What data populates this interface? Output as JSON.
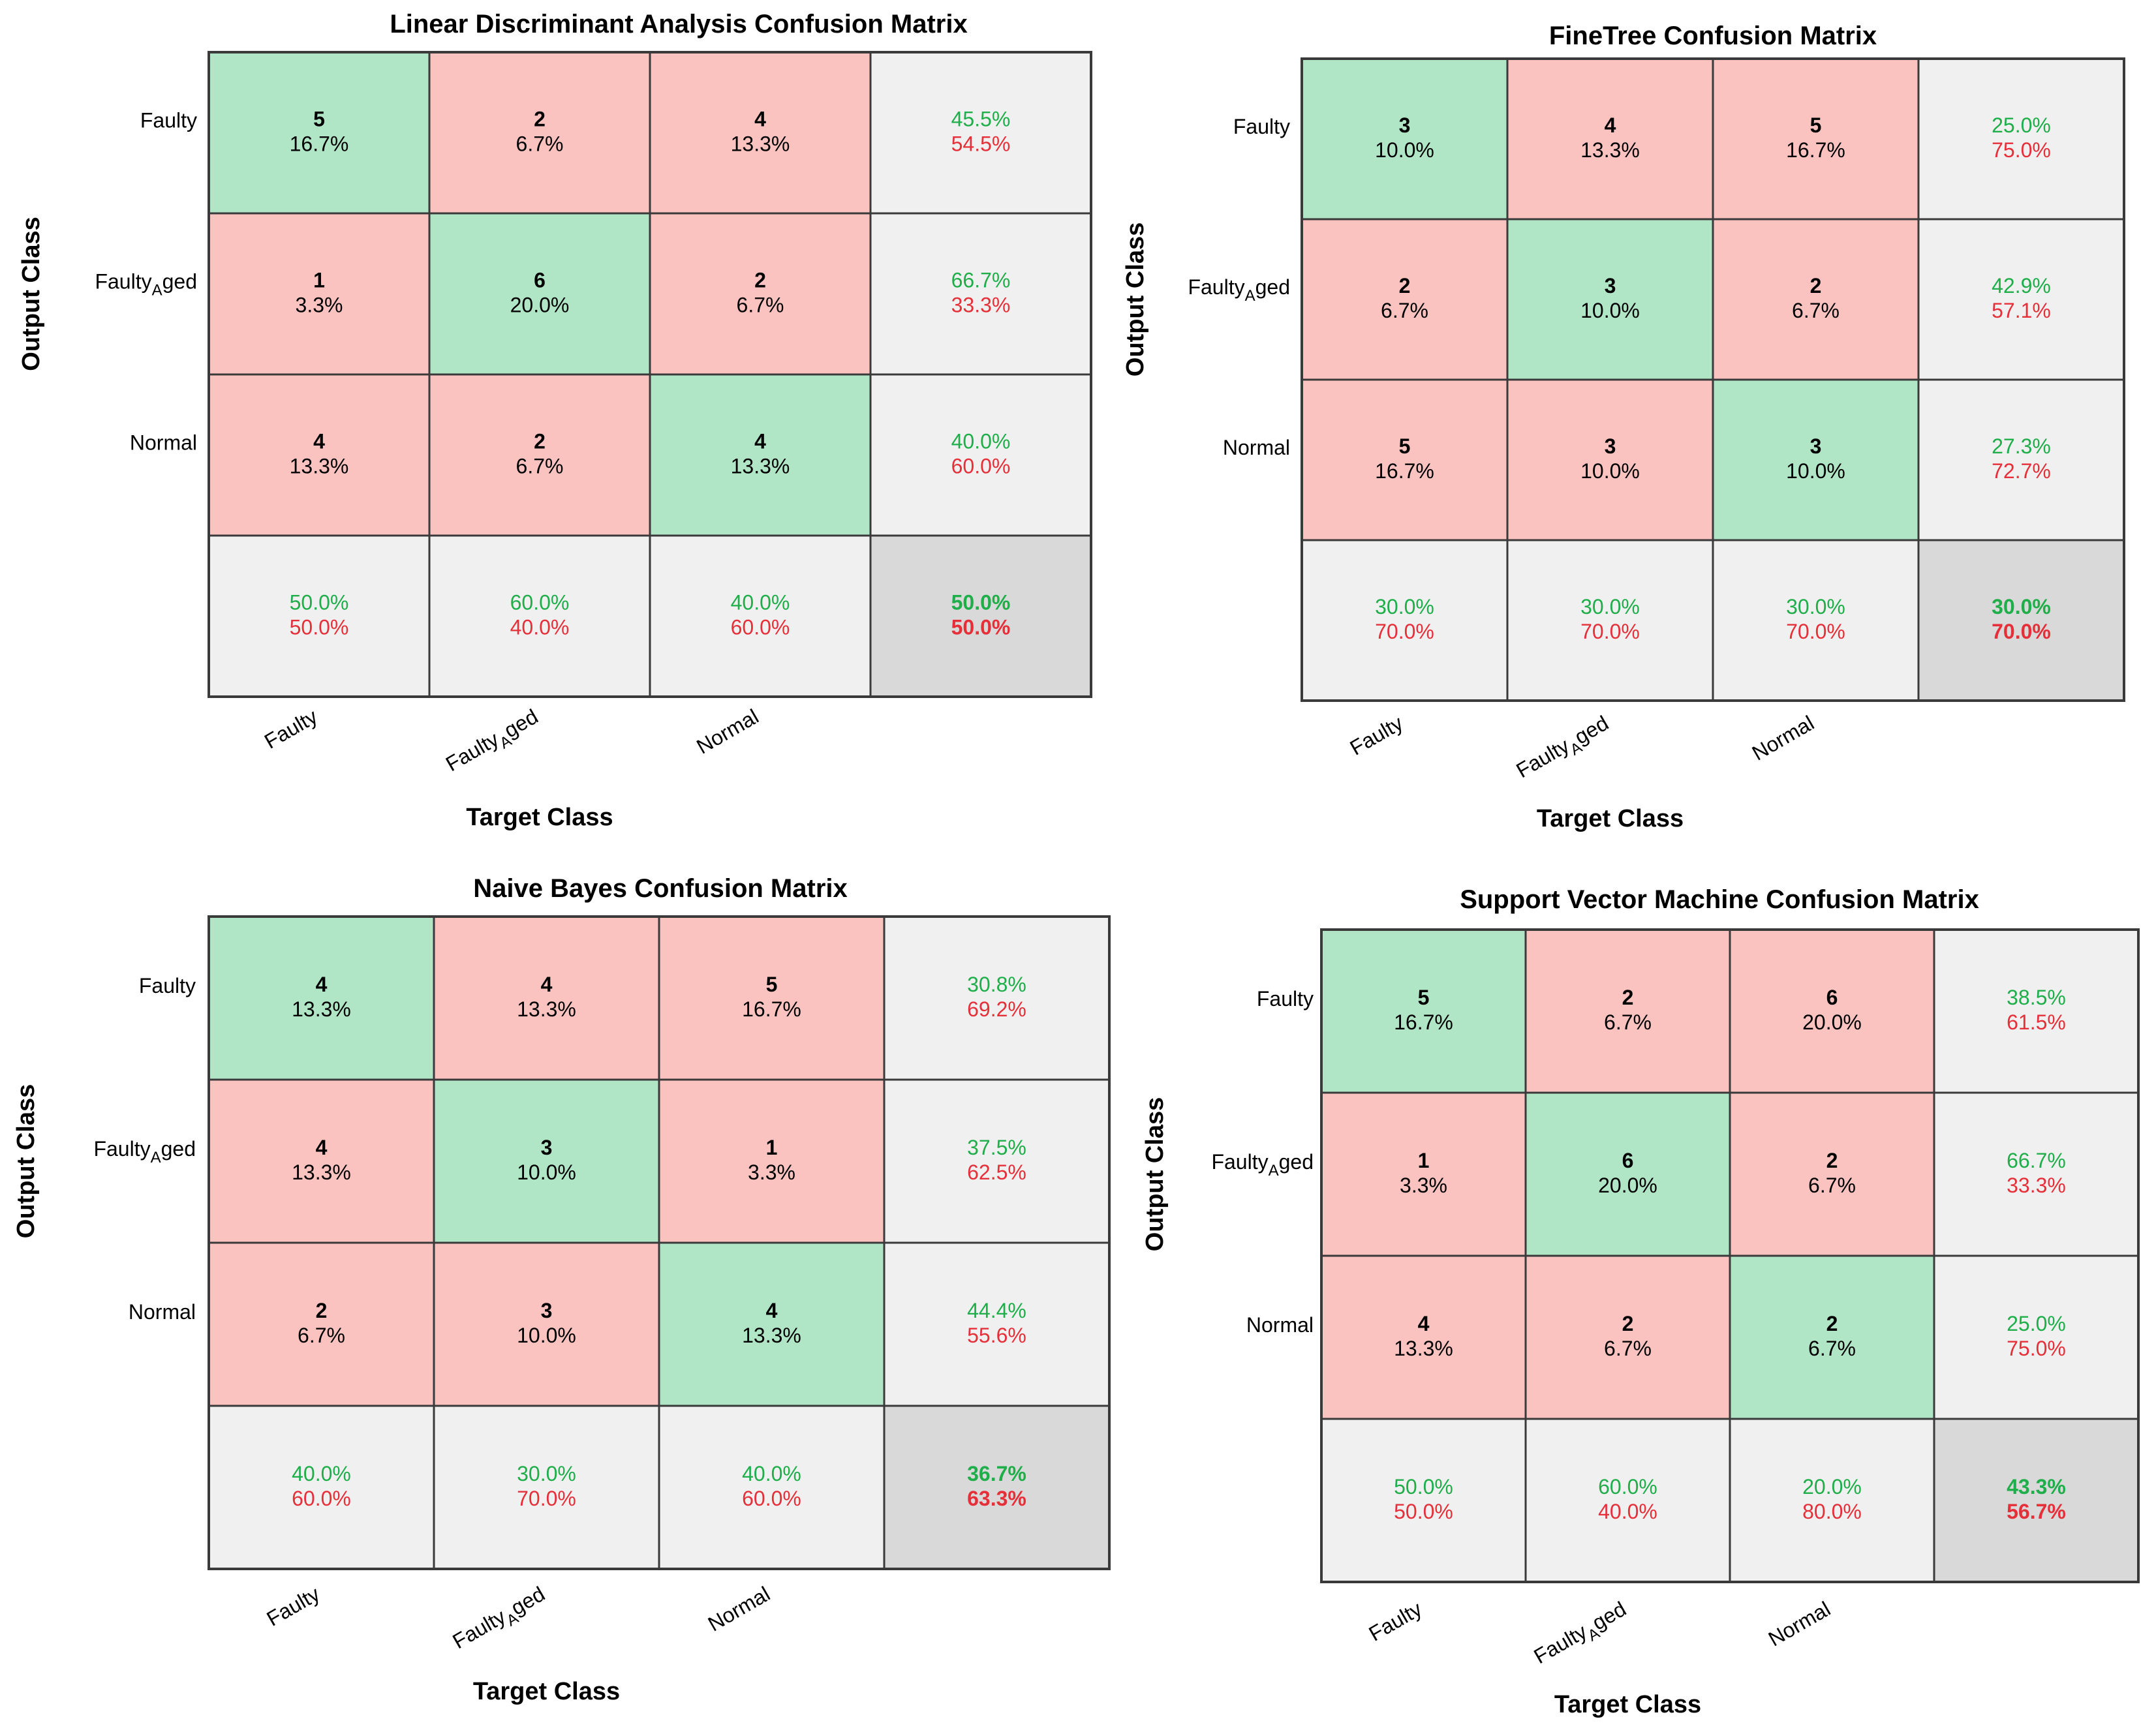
{
  "colors": {
    "correct": "#b0e6c5",
    "incorrect": "#fbc3c0",
    "summary": "#f0f0f0",
    "overall": "#d9d9d9",
    "green_text": "#1fae4a",
    "red_text": "#e5303a",
    "grid": "#3a3a3a"
  },
  "chart_data": [
    {
      "type": "heatmap",
      "title": "Linear Discriminant Analysis Confusion Matrix",
      "xlabel": "Target Class",
      "ylabel": "Output Class",
      "x_categories": [
        "Faulty",
        "Faulty_Aged",
        "Normal"
      ],
      "y_categories": [
        "Faulty",
        "Faulty_Aged",
        "Normal"
      ],
      "counts": [
        [
          5,
          2,
          4
        ],
        [
          1,
          6,
          2
        ],
        [
          4,
          2,
          4
        ]
      ],
      "percents": [
        [
          "16.7%",
          "6.7%",
          "13.3%"
        ],
        [
          "3.3%",
          "20.0%",
          "6.7%"
        ],
        [
          "13.3%",
          "6.7%",
          "13.3%"
        ]
      ],
      "row_summary": [
        [
          "45.5%",
          "54.5%"
        ],
        [
          "66.7%",
          "33.3%"
        ],
        [
          "40.0%",
          "60.0%"
        ]
      ],
      "col_summary": [
        [
          "50.0%",
          "50.0%"
        ],
        [
          "60.0%",
          "40.0%"
        ],
        [
          "40.0%",
          "60.0%"
        ]
      ],
      "overall": [
        "50.0%",
        "50.0%"
      ]
    },
    {
      "type": "heatmap",
      "title": "FineTree Confusion Matrix",
      "xlabel": "Target Class",
      "ylabel": "Output Class",
      "x_categories": [
        "Faulty",
        "Faulty_Aged",
        "Normal"
      ],
      "y_categories": [
        "Faulty",
        "Faulty_Aged",
        "Normal"
      ],
      "counts": [
        [
          3,
          4,
          5
        ],
        [
          2,
          3,
          2
        ],
        [
          5,
          3,
          3
        ]
      ],
      "percents": [
        [
          "10.0%",
          "13.3%",
          "16.7%"
        ],
        [
          "6.7%",
          "10.0%",
          "6.7%"
        ],
        [
          "16.7%",
          "10.0%",
          "10.0%"
        ]
      ],
      "row_summary": [
        [
          "25.0%",
          "75.0%"
        ],
        [
          "42.9%",
          "57.1%"
        ],
        [
          "27.3%",
          "72.7%"
        ]
      ],
      "col_summary": [
        [
          "30.0%",
          "70.0%"
        ],
        [
          "30.0%",
          "70.0%"
        ],
        [
          "30.0%",
          "70.0%"
        ]
      ],
      "overall": [
        "30.0%",
        "70.0%"
      ]
    },
    {
      "type": "heatmap",
      "title": "Naive Bayes Confusion Matrix",
      "xlabel": "Target Class",
      "ylabel": "Output Class",
      "x_categories": [
        "Faulty",
        "Faulty_Aged",
        "Normal"
      ],
      "y_categories": [
        "Faulty",
        "Faulty_Aged",
        "Normal"
      ],
      "counts": [
        [
          4,
          4,
          5
        ],
        [
          4,
          3,
          1
        ],
        [
          2,
          3,
          4
        ]
      ],
      "percents": [
        [
          "13.3%",
          "13.3%",
          "16.7%"
        ],
        [
          "13.3%",
          "10.0%",
          "3.3%"
        ],
        [
          "6.7%",
          "10.0%",
          "13.3%"
        ]
      ],
      "row_summary": [
        [
          "30.8%",
          "69.2%"
        ],
        [
          "37.5%",
          "62.5%"
        ],
        [
          "44.4%",
          "55.6%"
        ]
      ],
      "col_summary": [
        [
          "40.0%",
          "60.0%"
        ],
        [
          "30.0%",
          "70.0%"
        ],
        [
          "40.0%",
          "60.0%"
        ]
      ],
      "overall": [
        "36.7%",
        "63.3%"
      ]
    },
    {
      "type": "heatmap",
      "title": "Support Vector Machine Confusion Matrix",
      "xlabel": "Target Class",
      "ylabel": "Output Class",
      "x_categories": [
        "Faulty",
        "Faulty_Aged",
        "Normal"
      ],
      "y_categories": [
        "Faulty",
        "Faulty_Aged",
        "Normal"
      ],
      "counts": [
        [
          5,
          2,
          6
        ],
        [
          1,
          6,
          2
        ],
        [
          4,
          2,
          2
        ]
      ],
      "percents": [
        [
          "16.7%",
          "6.7%",
          "20.0%"
        ],
        [
          "3.3%",
          "20.0%",
          "6.7%"
        ],
        [
          "13.3%",
          "6.7%",
          "6.7%"
        ]
      ],
      "row_summary": [
        [
          "38.5%",
          "61.5%"
        ],
        [
          "66.7%",
          "33.3%"
        ],
        [
          "25.0%",
          "75.0%"
        ]
      ],
      "col_summary": [
        [
          "50.0%",
          "50.0%"
        ],
        [
          "60.0%",
          "40.0%"
        ],
        [
          "20.0%",
          "80.0%"
        ]
      ],
      "overall": [
        "43.3%",
        "56.7%"
      ]
    }
  ]
}
